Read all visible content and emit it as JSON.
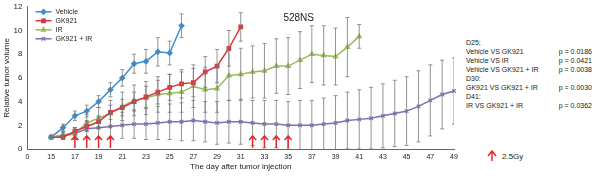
{
  "chart_data": {
    "type": "line",
    "title": "528NS",
    "x_label": "The day after tumor injection",
    "y_label": "Relative tumor volume",
    "categories": [
      "0",
      null,
      "15",
      null,
      "17",
      null,
      "19",
      null,
      "21",
      null,
      "23",
      null,
      "25",
      null,
      "27",
      null,
      "29",
      null,
      "31",
      null,
      "33",
      null,
      "35",
      null,
      "37",
      null,
      "39",
      null,
      "41",
      null,
      "43",
      null,
      "45",
      null,
      "47",
      null,
      "49"
    ],
    "ylim": [
      0,
      12
    ],
    "yticks": [
      0,
      2,
      4,
      6,
      8,
      10,
      12
    ],
    "grid": false,
    "legend": "upper left",
    "series": [
      {
        "name": "Vehicle",
        "color": "#3a8fd6",
        "marker": "diamond",
        "values": [
          null,
          null,
          1.0,
          1.8,
          2.8,
          3.2,
          4.0,
          5.0,
          6.0,
          7.2,
          7.4,
          8.2,
          8.1,
          10.4,
          null,
          null,
          null,
          null,
          null,
          null,
          null,
          null,
          null,
          null,
          null,
          null,
          null,
          null,
          null,
          null,
          null,
          null,
          null,
          null,
          null,
          null,
          null
        ],
        "errors": [
          null,
          null,
          0,
          0.3,
          0.4,
          0.5,
          0.5,
          0.6,
          0.7,
          0.8,
          1.0,
          1.2,
          1.0,
          1.0,
          null,
          null,
          null,
          null,
          null,
          null,
          null,
          null,
          null,
          null,
          null,
          null,
          null,
          null,
          null,
          null,
          null,
          null,
          null,
          null,
          null,
          null,
          null
        ]
      },
      {
        "name": "GK921",
        "color": "#d9363e",
        "marker": "square",
        "values": [
          null,
          null,
          1.0,
          1.0,
          1.5,
          1.9,
          2.3,
          3.1,
          3.5,
          4.0,
          4.4,
          4.8,
          5.2,
          5.5,
          5.6,
          6.5,
          7.0,
          8.5,
          10.3,
          null,
          null,
          null,
          null,
          null,
          null,
          null,
          null,
          null,
          null,
          null,
          null,
          null,
          null,
          null,
          null,
          null,
          null
        ],
        "errors": [
          null,
          null,
          0,
          0.2,
          0.3,
          0.4,
          0.5,
          0.6,
          0.7,
          0.8,
          0.9,
          1.0,
          1.1,
          1.2,
          1.2,
          1.3,
          1.4,
          1.5,
          1.2,
          null,
          null,
          null,
          null,
          null,
          null,
          null,
          null,
          null,
          null,
          null,
          null,
          null,
          null,
          null,
          null,
          null,
          null
        ]
      },
      {
        "name": "IR",
        "color": "#9bbb59",
        "marker": "triangle",
        "values": [
          null,
          null,
          1.0,
          1.2,
          1.3,
          2.2,
          2.6,
          3.0,
          3.6,
          4.1,
          4.3,
          4.6,
          4.7,
          4.8,
          5.3,
          5.0,
          5.1,
          6.2,
          6.3,
          6.5,
          6.6,
          7.0,
          7.0,
          7.5,
          8.0,
          7.9,
          7.8,
          8.6,
          9.5,
          null,
          null,
          null,
          null,
          null,
          null,
          null,
          null
        ],
        "errors": [
          null,
          null,
          0,
          0.3,
          0.5,
          0.7,
          0.9,
          1.1,
          1.2,
          1.3,
          1.4,
          1.5,
          1.6,
          1.7,
          1.8,
          1.9,
          2.0,
          2.1,
          2.2,
          2.2,
          2.3,
          2.3,
          2.4,
          2.4,
          2.4,
          2.5,
          2.4,
          2.5,
          1.0,
          null,
          null,
          null,
          null,
          null,
          null,
          null,
          null
        ]
      },
      {
        "name": "GK921 + IR",
        "color": "#7b6fb5",
        "marker": "x",
        "values": [
          null,
          null,
          1.0,
          1.1,
          1.3,
          1.7,
          1.8,
          1.9,
          2.0,
          2.1,
          2.1,
          2.2,
          2.3,
          2.3,
          2.4,
          2.3,
          2.2,
          2.3,
          2.3,
          2.2,
          2.1,
          2.1,
          2.0,
          2.0,
          2.0,
          2.1,
          2.2,
          2.4,
          2.5,
          2.6,
          2.8,
          3.0,
          3.2,
          3.6,
          4.1,
          4.6,
          4.9
        ],
        "errors": [
          null,
          null,
          0,
          0.3,
          0.5,
          0.7,
          0.9,
          1.0,
          1.1,
          1.2,
          1.3,
          1.4,
          1.5,
          1.6,
          1.7,
          1.7,
          1.8,
          1.8,
          1.9,
          1.9,
          2.0,
          2.0,
          2.0,
          2.1,
          2.1,
          2.2,
          2.3,
          2.4,
          2.5,
          2.6,
          2.7,
          2.8,
          2.9,
          3.0,
          3.0,
          2.9,
          2.8
        ]
      }
    ],
    "irradiation": {
      "label": "2.5Gy",
      "color": "#e8262c",
      "days": [
        17,
        18,
        19,
        20,
        32,
        33,
        34,
        35
      ]
    },
    "annotations": [
      {
        "heading": "D25;",
        "rows": [
          {
            "comparison": "Vehicle VS GK921",
            "p": "p = 0.0186"
          },
          {
            "comparison": "Vehicle VS IR",
            "p": "p = 0.0421"
          },
          {
            "comparison": "Vehicle VS GK921 + IR",
            "p": "p = 0.0038"
          }
        ]
      },
      {
        "heading": "D30:",
        "rows": [
          {
            "comparison": "GK921 VS GK921 + IR",
            "p": "p = 0.0030"
          }
        ]
      },
      {
        "heading": "D41:",
        "rows": [
          {
            "comparison": "IR VS GK921 + IR",
            "p": "p = 0.0362"
          }
        ]
      }
    ]
  }
}
